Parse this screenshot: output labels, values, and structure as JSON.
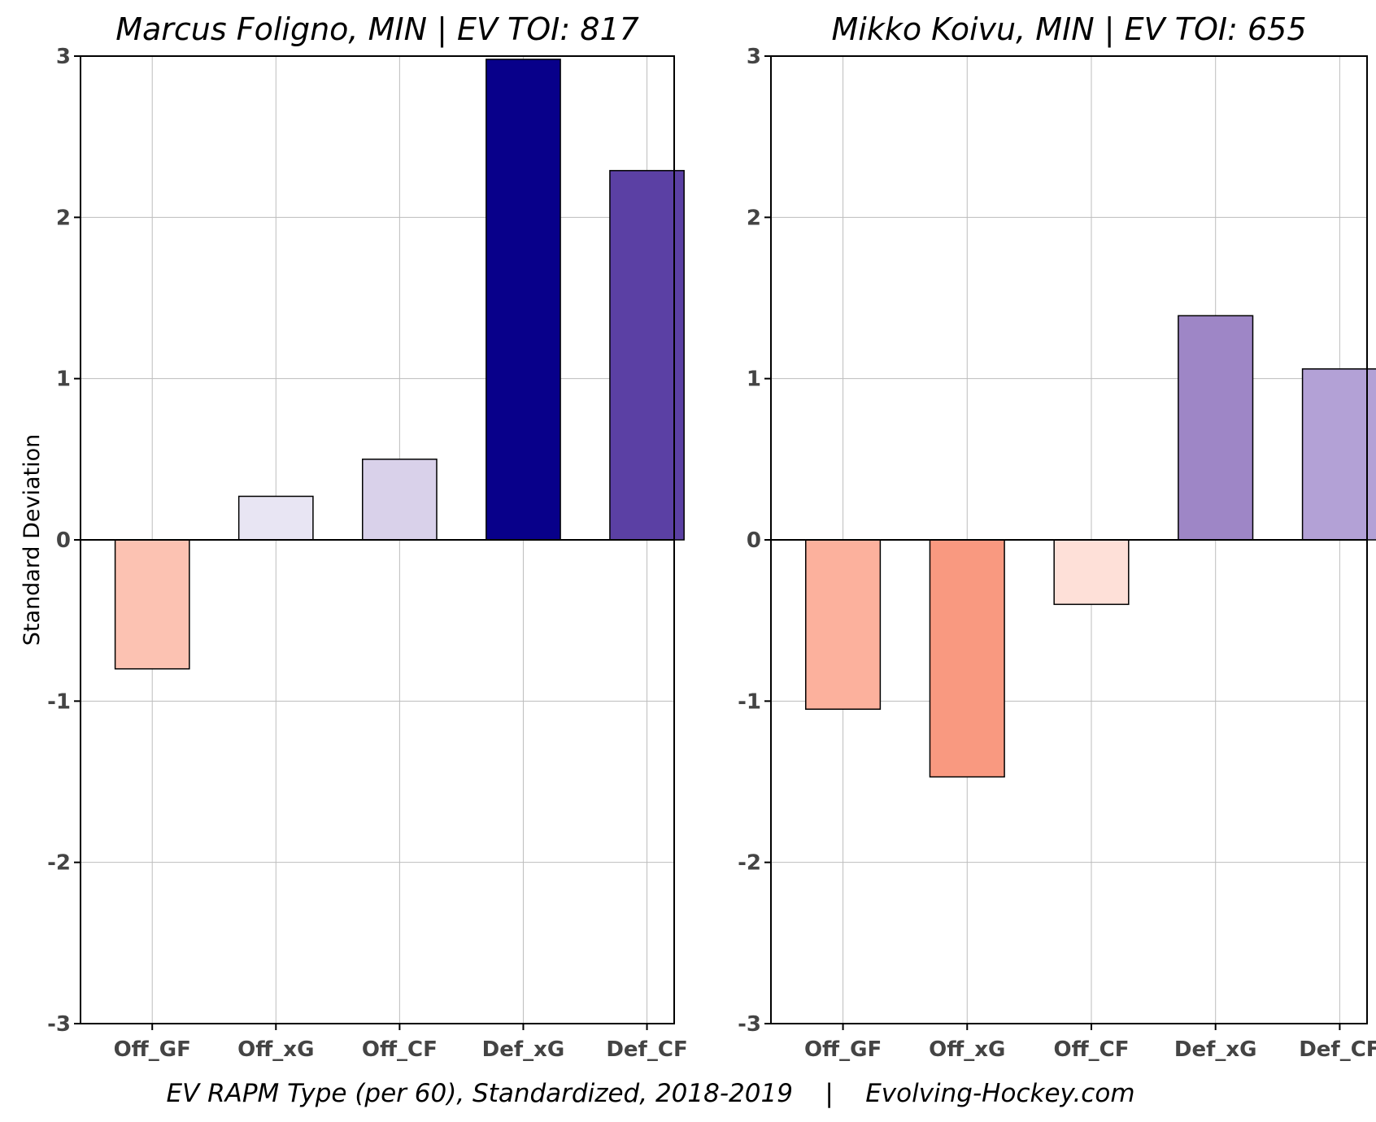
{
  "chart_data": [
    {
      "type": "bar",
      "title": "Marcus Foligno, MIN  |  EV TOI: 817",
      "ylabel": "Standard Deviation",
      "xlabel": "",
      "categories": [
        "Off_GF",
        "Off_xG",
        "Off_CF",
        "Def_xG",
        "Def_CF"
      ],
      "values": [
        -0.8,
        0.27,
        0.5,
        2.98,
        2.29
      ],
      "colors": [
        "#fcc2b2",
        "#e8e5f3",
        "#d9d1ea",
        "#08008a",
        "#5b40a4"
      ],
      "ylim": [
        -3,
        3
      ],
      "yticks": [
        3,
        2,
        1,
        0,
        -1,
        -2,
        -3
      ],
      "grid": true
    },
    {
      "type": "bar",
      "title": "Mikko Koivu, MIN  |  EV TOI: 655",
      "ylabel": "",
      "xlabel": "",
      "categories": [
        "Off_GF",
        "Off_xG",
        "Off_CF",
        "Def_xG",
        "Def_CF"
      ],
      "values": [
        -1.05,
        -1.47,
        -0.4,
        1.39,
        1.06
      ],
      "colors": [
        "#fcb19d",
        "#f99980",
        "#fee0d8",
        "#9e86c6",
        "#b3a1d6"
      ],
      "ylim": [
        -3,
        3
      ],
      "yticks": [
        3,
        2,
        1,
        0,
        -1,
        -2,
        -3
      ],
      "grid": true
    }
  ],
  "footer": {
    "caption": "EV RAPM Type (per 60), Standardized, 2018-2019    |    Evolving-Hockey.com"
  }
}
